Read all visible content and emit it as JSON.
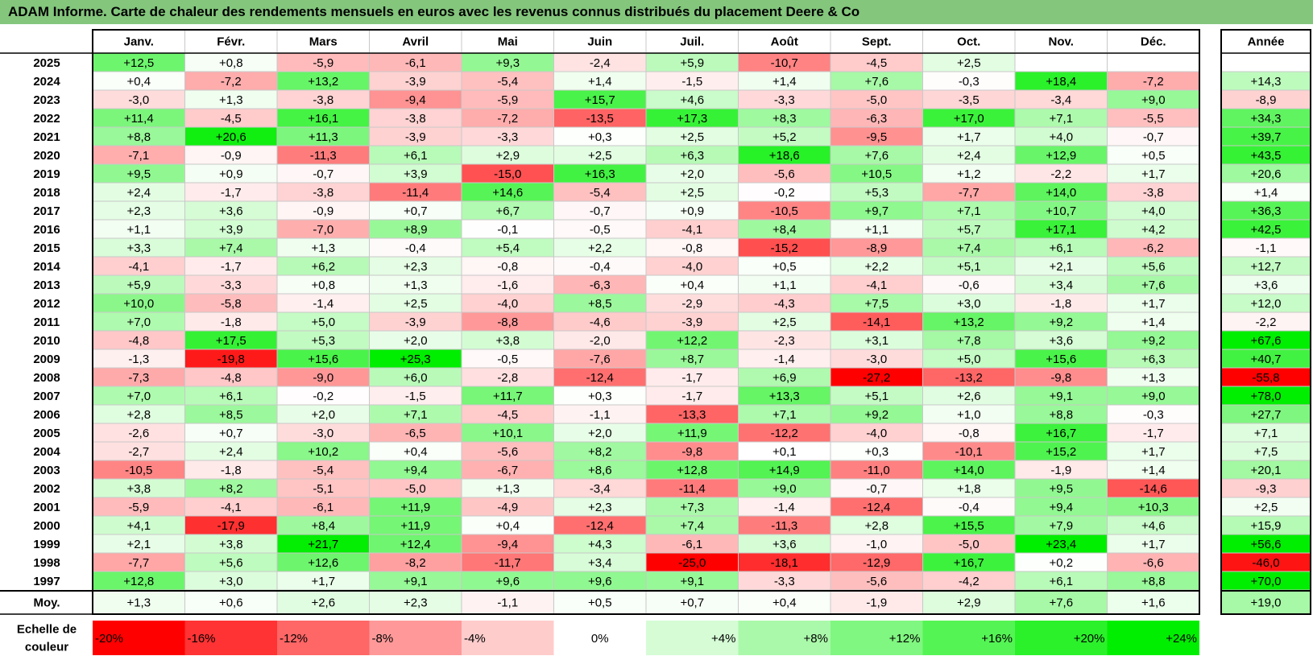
{
  "title": "ADAM Informe. Carte de chaleur des rendements mensuels en euros avec les revenus connus distribués du placement Deere & Co",
  "colors": {
    "title_bg": "#83c67c",
    "negative_max": "#ff0000",
    "neutral": "#ffffff",
    "positive_max": "#00ee00"
  },
  "chart_data": {
    "type": "heatmap",
    "title": "ADAM Informe. Carte de chaleur des rendements mensuels en euros avec les revenus connus distribués du placement Deere & Co",
    "columns": [
      "Janv.",
      "Févr.",
      "Mars",
      "Avril",
      "Mai",
      "Juin",
      "Juil.",
      "Août",
      "Sept.",
      "Oct.",
      "Nov.",
      "Déc."
    ],
    "year_column": "Année",
    "rows": [
      {
        "label": "2025",
        "values": [
          "+12,5",
          "+0,8",
          "-5,9",
          "-6,1",
          "+9,3",
          "-2,4",
          "+5,9",
          "-10,7",
          "-4,5",
          "+2,5",
          "",
          ""
        ],
        "year": ""
      },
      {
        "label": "2024",
        "values": [
          "+0,4",
          "-7,2",
          "+13,2",
          "-3,9",
          "-5,4",
          "+1,4",
          "-1,5",
          "+1,4",
          "+7,6",
          "-0,3",
          "+18,4",
          "-7,2"
        ],
        "year": "+14,3"
      },
      {
        "label": "2023",
        "values": [
          "-3,0",
          "+1,3",
          "-3,8",
          "-9,4",
          "-5,9",
          "+15,7",
          "+4,6",
          "-3,3",
          "-5,0",
          "-3,5",
          "-3,4",
          "+9,0"
        ],
        "year": "-8,9"
      },
      {
        "label": "2022",
        "values": [
          "+11,4",
          "-4,5",
          "+16,1",
          "-3,8",
          "-7,2",
          "-13,5",
          "+17,3",
          "+8,3",
          "-6,3",
          "+17,0",
          "+7,1",
          "-5,5"
        ],
        "year": "+34,3"
      },
      {
        "label": "2021",
        "values": [
          "+8,8",
          "+20,6",
          "+11,3",
          "-3,9",
          "-3,3",
          "+0,3",
          "+2,5",
          "+5,2",
          "-9,5",
          "+1,7",
          "+4,0",
          "-0,7"
        ],
        "year": "+39,7"
      },
      {
        "label": "2020",
        "values": [
          "-7,1",
          "-0,9",
          "-11,3",
          "+6,1",
          "+2,9",
          "+2,5",
          "+6,3",
          "+18,6",
          "+7,6",
          "+2,4",
          "+12,9",
          "+0,5"
        ],
        "year": "+43,5"
      },
      {
        "label": "2019",
        "values": [
          "+9,5",
          "+0,9",
          "-0,7",
          "+3,9",
          "-15,0",
          "+16,3",
          "+2,0",
          "-5,6",
          "+10,5",
          "+1,2",
          "-2,2",
          "+1,7"
        ],
        "year": "+20,6"
      },
      {
        "label": "2018",
        "values": [
          "+2,4",
          "-1,7",
          "-3,8",
          "-11,4",
          "+14,6",
          "-5,4",
          "+2,5",
          "-0,2",
          "+5,3",
          "-7,7",
          "+14,0",
          "-3,8"
        ],
        "year": "+1,4"
      },
      {
        "label": "2017",
        "values": [
          "+2,3",
          "+3,6",
          "-0,9",
          "+0,7",
          "+6,7",
          "-0,7",
          "+0,9",
          "-10,5",
          "+9,7",
          "+7,1",
          "+10,7",
          "+4,0"
        ],
        "year": "+36,3"
      },
      {
        "label": "2016",
        "values": [
          "+1,1",
          "+3,9",
          "-7,0",
          "+8,9",
          "-0,1",
          "-0,5",
          "-4,1",
          "+8,4",
          "+1,1",
          "+5,7",
          "+17,1",
          "+4,2"
        ],
        "year": "+42,5"
      },
      {
        "label": "2015",
        "values": [
          "+3,3",
          "+7,4",
          "+1,3",
          "-0,4",
          "+5,4",
          "+2,2",
          "-0,8",
          "-15,2",
          "-8,9",
          "+7,4",
          "+6,1",
          "-6,2"
        ],
        "year": "-1,1"
      },
      {
        "label": "2014",
        "values": [
          "-4,1",
          "-1,7",
          "+6,2",
          "+2,3",
          "-0,8",
          "-0,4",
          "-4,0",
          "+0,5",
          "+2,2",
          "+5,1",
          "+2,1",
          "+5,6"
        ],
        "year": "+12,7"
      },
      {
        "label": "2013",
        "values": [
          "+5,9",
          "-3,3",
          "+0,8",
          "+1,3",
          "-1,6",
          "-6,3",
          "+0,4",
          "+1,1",
          "-4,1",
          "-0,6",
          "+3,4",
          "+7,6"
        ],
        "year": "+3,6"
      },
      {
        "label": "2012",
        "values": [
          "+10,0",
          "-5,8",
          "-1,4",
          "+2,5",
          "-4,0",
          "+8,5",
          "-2,9",
          "-4,3",
          "+7,5",
          "+3,0",
          "-1,8",
          "+1,7"
        ],
        "year": "+12,0"
      },
      {
        "label": "2011",
        "values": [
          "+7,0",
          "-1,8",
          "+5,0",
          "-3,9",
          "-8,8",
          "-4,6",
          "-3,9",
          "+2,5",
          "-14,1",
          "+13,2",
          "+9,2",
          "+1,4"
        ],
        "year": "-2,2"
      },
      {
        "label": "2010",
        "values": [
          "-4,8",
          "+17,5",
          "+5,3",
          "+2,0",
          "+3,8",
          "-2,0",
          "+12,2",
          "-2,3",
          "+3,1",
          "+7,8",
          "+3,6",
          "+9,2"
        ],
        "year": "+67,6"
      },
      {
        "label": "2009",
        "values": [
          "-1,3",
          "-19,8",
          "+15,6",
          "+25,3",
          "-0,5",
          "-7,6",
          "+8,7",
          "-1,4",
          "-3,0",
          "+5,0",
          "+15,6",
          "+6,3"
        ],
        "year": "+40,7"
      },
      {
        "label": "2008",
        "values": [
          "-7,3",
          "-4,8",
          "-9,0",
          "+6,0",
          "-2,8",
          "-12,4",
          "-1,7",
          "+6,9",
          "-27,2",
          "-13,2",
          "-9,8",
          "+1,3"
        ],
        "year": "-55,8"
      },
      {
        "label": "2007",
        "values": [
          "+7,0",
          "+6,1",
          "-0,2",
          "-1,5",
          "+11,7",
          "+0,3",
          "-1,7",
          "+13,3",
          "+5,1",
          "+2,6",
          "+9,1",
          "+9,0"
        ],
        "year": "+78,0"
      },
      {
        "label": "2006",
        "values": [
          "+2,8",
          "+8,5",
          "+2,0",
          "+7,1",
          "-4,5",
          "-1,1",
          "-13,3",
          "+7,1",
          "+9,2",
          "+1,0",
          "+8,8",
          "-0,3"
        ],
        "year": "+27,7"
      },
      {
        "label": "2005",
        "values": [
          "-2,6",
          "+0,7",
          "-3,0",
          "-6,5",
          "+10,1",
          "+2,0",
          "+11,9",
          "-12,2",
          "-4,0",
          "-0,8",
          "+16,7",
          "-1,7"
        ],
        "year": "+7,1"
      },
      {
        "label": "2004",
        "values": [
          "-2,7",
          "+2,4",
          "+10,2",
          "+0,4",
          "-5,6",
          "+8,2",
          "-9,8",
          "+0,1",
          "+0,3",
          "-10,1",
          "+15,2",
          "+1,7"
        ],
        "year": "+7,5"
      },
      {
        "label": "2003",
        "values": [
          "-10,5",
          "-1,8",
          "-5,4",
          "+9,4",
          "-6,7",
          "+8,6",
          "+12,8",
          "+14,9",
          "-11,0",
          "+14,0",
          "-1,9",
          "+1,4"
        ],
        "year": "+20,1"
      },
      {
        "label": "2002",
        "values": [
          "+3,8",
          "+8,2",
          "-5,1",
          "-5,0",
          "+1,3",
          "-3,4",
          "-11,4",
          "+9,0",
          "-0,7",
          "+1,8",
          "+9,5",
          "-14,6"
        ],
        "year": "-9,3"
      },
      {
        "label": "2001",
        "values": [
          "-5,9",
          "-4,1",
          "-6,1",
          "+11,9",
          "-4,9",
          "+2,3",
          "+7,3",
          "-1,4",
          "-12,4",
          "-0,4",
          "+9,4",
          "+10,3"
        ],
        "year": "+2,5"
      },
      {
        "label": "2000",
        "values": [
          "+4,1",
          "-17,9",
          "+8,4",
          "+11,9",
          "+0,4",
          "-12,4",
          "+7,4",
          "-11,3",
          "+2,8",
          "+15,5",
          "+7,9",
          "+4,6"
        ],
        "year": "+15,9"
      },
      {
        "label": "1999",
        "values": [
          "+2,1",
          "+3,8",
          "+21,7",
          "+12,4",
          "-9,4",
          "+4,3",
          "-6,1",
          "+3,6",
          "-1,0",
          "-5,0",
          "+23,4",
          "+1,7"
        ],
        "year": "+56,6"
      },
      {
        "label": "1998",
        "values": [
          "-7,7",
          "+5,6",
          "+12,6",
          "-8,2",
          "-11,7",
          "+3,4",
          "-25,0",
          "-18,1",
          "-12,9",
          "+16,7",
          "+0,2",
          "-6,6"
        ],
        "year": "-46,0"
      },
      {
        "label": "1997",
        "values": [
          "+12,8",
          "+3,0",
          "+1,7",
          "+9,1",
          "+9,6",
          "+9,6",
          "+9,1",
          "-3,3",
          "-5,6",
          "-4,2",
          "+6,1",
          "+8,8"
        ],
        "year": "+70,0"
      }
    ],
    "average_row": {
      "label": "Moy.",
      "values": [
        "+1,3",
        "+0,6",
        "+2,6",
        "+2,3",
        "-1,1",
        "+0,5",
        "+0,7",
        "+0,4",
        "-1,9",
        "+2,9",
        "+7,6",
        "+1,6"
      ],
      "year": "+19,0"
    },
    "legend": {
      "label_line1": "Echelle de",
      "label_line2": "couleur",
      "steps": [
        "-20%",
        "-16%",
        "-12%",
        "-8%",
        "-4%",
        "0%",
        "+4%",
        "+8%",
        "+12%",
        "+16%",
        "+20%",
        "+24%"
      ]
    }
  }
}
